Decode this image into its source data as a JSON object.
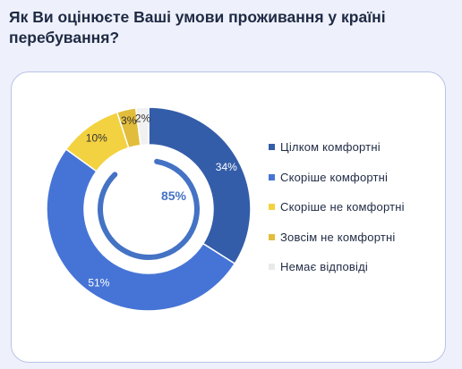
{
  "title": "Як Ви оцінюєте Ваші умови проживання у країні перебування?",
  "chart_data": {
    "type": "pie",
    "variant": "donut",
    "categories": [
      "Цілком комфортні",
      "Скоріше комфортні",
      "Скоріше не комфортні",
      "Зовсім не комфортні",
      "Немає відповіді"
    ],
    "values": [
      34,
      51,
      10,
      3,
      2
    ],
    "labels": [
      "34%",
      "51%",
      "10%",
      "3%",
      "2%"
    ],
    "colors": [
      "#345da9",
      "#4674d6",
      "#f3d241",
      "#e2bd3b",
      "#f1f1f1"
    ],
    "center_label": "85%",
    "center_value": 85,
    "center_ring_color": "#4472c4",
    "legend_position": "right"
  }
}
